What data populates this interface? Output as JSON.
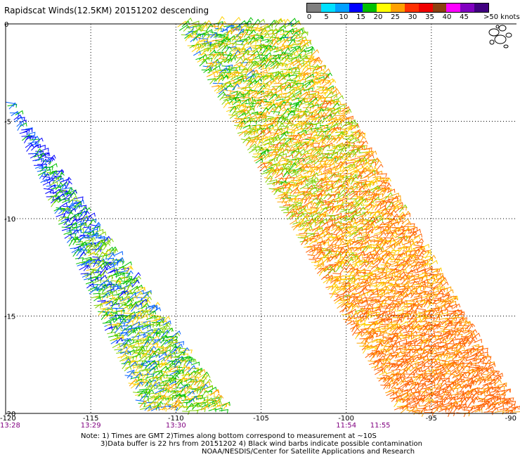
{
  "title": "Rapidscat Winds(12.5KM) 20151202 descending",
  "legend": {
    "labels": [
      "0",
      "5",
      "10",
      "15",
      "20",
      "25",
      "30",
      "35",
      "40",
      "45",
      ">50 knots"
    ],
    "colors": [
      "#7f7f7f",
      "#00e0ff",
      "#00a0ff",
      "#0000ff",
      "#00c000",
      "#ffff00",
      "#ffa000",
      "#ff3000",
      "#f00000",
      "#8b4010",
      "#ff00ff",
      "#8000c0",
      "#400080"
    ]
  },
  "map": {
    "lon_range": [
      -120,
      -90
    ],
    "lat_range": [
      0,
      -20
    ],
    "lon_ticks": [
      "-120",
      "-115",
      "-110",
      "-105",
      "-100",
      "-95",
      "-90"
    ],
    "lat_ticks": [
      "0",
      "-5",
      "-10",
      "-15",
      "-20"
    ],
    "time_labels": [
      "13:28",
      "13:29",
      "13:30",
      "11:54",
      "11:55"
    ],
    "time_label_lons": [
      -120,
      -115,
      -110,
      -100,
      -98
    ],
    "time_color": "#800080",
    "swaths": [
      {
        "name": "swath-west",
        "edges_lon": [
          [
            -120,
            -112
          ],
          [
            -120,
            -107
          ]
        ],
        "lat_span": [
          -4,
          -20
        ]
      },
      {
        "name": "swath-east",
        "edges_lon": [
          [
            -110,
            -97
          ],
          [
            -103,
            -90
          ]
        ],
        "lat_span": [
          0,
          -20
        ]
      }
    ],
    "barb_colors": [
      "#0000ff",
      "#0060ff",
      "#00c000",
      "#7fd000",
      "#ffd000",
      "#ffa000",
      "#ff6000"
    ]
  },
  "notes": {
    "line1": "Note: 1) Times are GMT 2)Times along bottom correspond to measurement at ~10S",
    "line2": "3)Data buffer is 22 hrs from 20151202 4) Black wind barbs indicate possible contamination",
    "line3": "NOAA/NESDIS/Center for Satellite Applications and Research"
  }
}
